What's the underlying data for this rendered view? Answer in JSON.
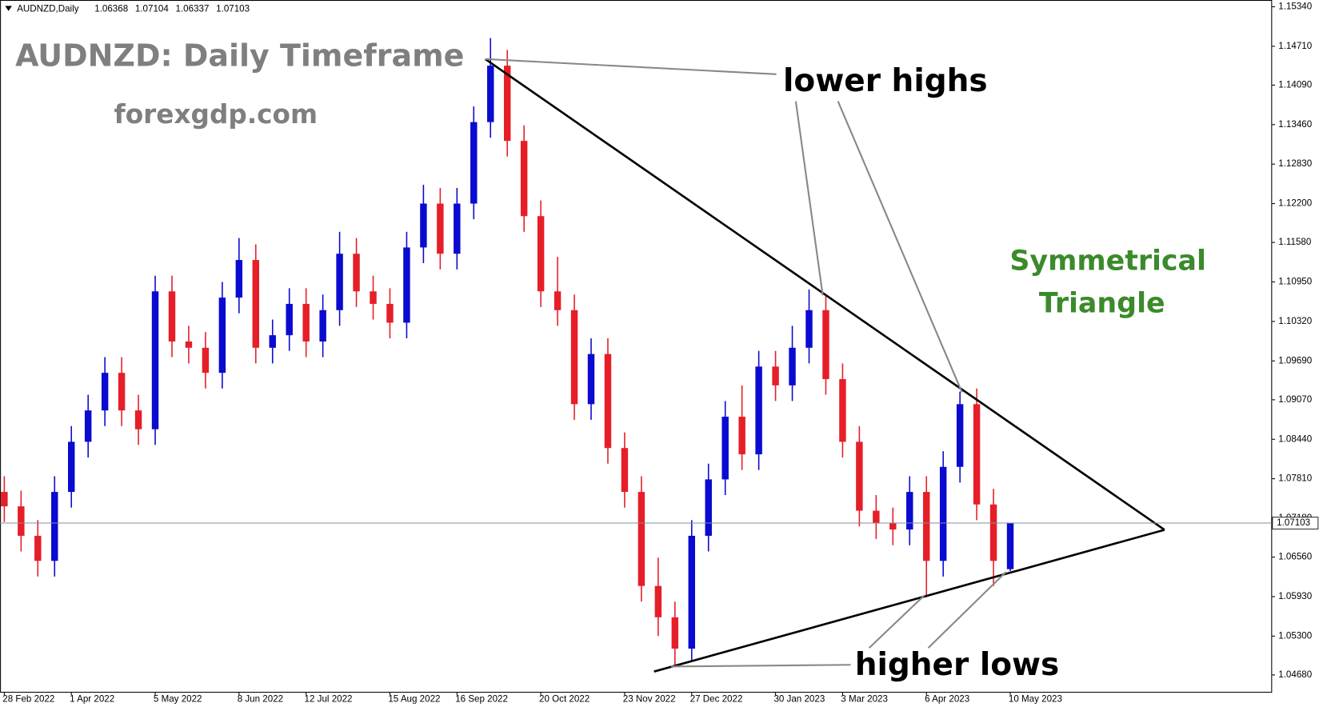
{
  "chart_data": {
    "type": "candlestick",
    "symbol": "AUDNZD,Daily",
    "header_values": [
      1.06368,
      1.07104,
      1.06337,
      1.07103
    ],
    "title": "AUDNZD: Daily Timeframe",
    "subtitle": "forexgdp.com",
    "annotations": [
      "lower highs",
      "higher lows",
      "Symmetrical",
      "Triangle"
    ],
    "categories": [
      "28 Feb 2022",
      null,
      null,
      null,
      "1 Apr 2022",
      null,
      null,
      null,
      null,
      "5 May 2022",
      null,
      null,
      null,
      null,
      "8 Jun 2022",
      null,
      null,
      null,
      "12 Jul 2022",
      null,
      null,
      null,
      null,
      "15 Aug 2022",
      null,
      null,
      null,
      "16 Sep 2022",
      null,
      null,
      null,
      null,
      "20 Oct 2022",
      null,
      null,
      null,
      null,
      "23 Nov 2022",
      null,
      null,
      null,
      "27 Dec 2022",
      null,
      null,
      null,
      null,
      "30 Jan 2023",
      null,
      null,
      null,
      "3 Mar 2023",
      null,
      null,
      null,
      null,
      "6 Apr 2023",
      null,
      null,
      null,
      null,
      "10 May 2023"
    ],
    "open": [
      1.076,
      1.0737,
      1.069,
      1.065,
      1.076,
      1.084,
      1.089,
      1.095,
      1.089,
      1.086,
      1.108,
      1.1,
      1.099,
      1.095,
      1.107,
      1.113,
      1.099,
      1.101,
      1.106,
      1.1,
      1.105,
      1.114,
      1.108,
      1.106,
      1.103,
      1.115,
      1.122,
      1.114,
      1.122,
      1.135,
      1.144,
      1.132,
      1.12,
      1.108,
      1.105,
      1.09,
      1.098,
      1.083,
      1.076,
      1.061,
      1.056,
      1.051,
      1.069,
      1.078,
      1.088,
      1.082,
      1.096,
      1.093,
      1.099,
      1.105,
      1.094,
      1.084,
      1.073,
      1.071,
      1.07,
      1.076,
      1.065,
      1.08,
      1.09,
      1.074,
      1.06368
    ],
    "high": [
      1.0785,
      1.0762,
      1.0715,
      1.0785,
      1.0865,
      1.0915,
      1.0975,
      1.0975,
      1.0915,
      1.1105,
      1.1105,
      1.1025,
      1.1015,
      1.1095,
      1.1165,
      1.1155,
      1.1035,
      1.1085,
      1.1085,
      1.1075,
      1.1175,
      1.1165,
      1.1105,
      1.1085,
      1.1175,
      1.125,
      1.1245,
      1.1245,
      1.1375,
      1.1484,
      1.1465,
      1.1345,
      1.1225,
      1.1135,
      1.1075,
      1.1005,
      1.1005,
      1.0855,
      1.0785,
      1.0655,
      1.0585,
      1.0715,
      1.0805,
      1.0905,
      1.093,
      1.0985,
      1.0985,
      1.1025,
      1.1083,
      1.1075,
      1.0965,
      1.0865,
      1.0755,
      1.0735,
      1.0785,
      1.0785,
      1.0825,
      1.092,
      1.0925,
      1.0765,
      1.07104
    ],
    "low": [
      1.0712,
      1.0665,
      1.0625,
      1.0625,
      1.0735,
      1.0815,
      1.0865,
      1.0865,
      1.0835,
      1.0835,
      1.0975,
      1.0965,
      1.0925,
      1.0925,
      1.1045,
      1.0965,
      1.0965,
      1.0985,
      1.0975,
      1.0975,
      1.1025,
      1.1055,
      1.1035,
      1.1005,
      1.1005,
      1.1125,
      1.1115,
      1.1115,
      1.1195,
      1.1325,
      1.1295,
      1.1175,
      1.1055,
      1.1025,
      1.0875,
      1.0875,
      1.0805,
      1.0735,
      1.0585,
      1.053,
      1.048,
      1.049,
      1.0665,
      1.0755,
      1.0795,
      1.0795,
      1.0905,
      1.0905,
      1.0965,
      1.0915,
      1.0815,
      1.0705,
      1.0685,
      1.0675,
      1.0675,
      1.0592,
      1.0625,
      1.0775,
      1.0715,
      1.061,
      1.06337
    ],
    "close": [
      1.0737,
      1.069,
      1.065,
      1.076,
      1.084,
      1.089,
      1.095,
      1.089,
      1.086,
      1.108,
      1.1,
      1.099,
      1.095,
      1.107,
      1.113,
      1.099,
      1.101,
      1.106,
      1.1,
      1.105,
      1.114,
      1.108,
      1.106,
      1.103,
      1.115,
      1.122,
      1.114,
      1.122,
      1.135,
      1.144,
      1.132,
      1.12,
      1.108,
      1.105,
      1.09,
      1.098,
      1.083,
      1.076,
      1.061,
      1.056,
      1.051,
      1.069,
      1.078,
      1.088,
      1.082,
      1.096,
      1.093,
      1.099,
      1.105,
      1.094,
      1.084,
      1.073,
      1.071,
      1.07,
      1.076,
      1.065,
      1.08,
      1.09,
      1.074,
      1.065,
      1.07103
    ],
    "up_color": "#0a0ad0",
    "down_color": "#e61e28",
    "ylim": [
      1.04411,
      1.15448
    ],
    "yticks": [
      {
        "value": 1.1534,
        "label": "1.15340"
      },
      {
        "value": 1.1471,
        "label": "1.14710"
      },
      {
        "value": 1.1409,
        "label": "1.14090"
      },
      {
        "value": 1.1346,
        "label": "1.13460"
      },
      {
        "value": 1.1283,
        "label": "1.12830"
      },
      {
        "value": 1.122,
        "label": "1.12200"
      },
      {
        "value": 1.1158,
        "label": "1.11580"
      },
      {
        "value": 1.1095,
        "label": "1.10950"
      },
      {
        "value": 1.1032,
        "label": "1.10320"
      },
      {
        "value": 1.0969,
        "label": "1.09690"
      },
      {
        "value": 1.0907,
        "label": "1.09070"
      },
      {
        "value": 1.0844,
        "label": "1.08440"
      },
      {
        "value": 1.0781,
        "label": "1.07810"
      },
      {
        "value": 1.0718,
        "label": "1.07180"
      },
      {
        "value": 1.0656,
        "label": "1.06560"
      },
      {
        "value": 1.0593,
        "label": "1.05930"
      },
      {
        "value": 1.053,
        "label": "1.05300"
      },
      {
        "value": 1.0468,
        "label": "1.04680"
      }
    ],
    "grid": false
  }
}
